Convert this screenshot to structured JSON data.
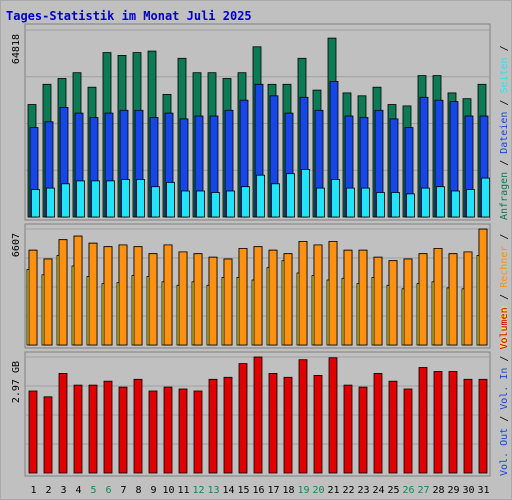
{
  "title": "Tages-Statistik im Monat Juli 2025",
  "colors": {
    "background": "#c0c0c0",
    "frame": "#a8a8a8",
    "title": "#0000cc",
    "anfragen": "#0c7a54",
    "dateien": "#1646e6",
    "seiten": "#22e4f8",
    "besuche": "#ffe820",
    "rechner": "#ff9010",
    "kbin": "#ff2020",
    "kbout": "#1646e6",
    "volumen": "#e00000",
    "weekend_label": "#0b8a5a",
    "weekday_label": "#000000"
  },
  "right_labels": {
    "top": [
      {
        "text": "Anfragen",
        "color": "#0c7a54"
      },
      {
        "text": " / ",
        "color": "#000000"
      },
      {
        "text": "Dateien",
        "color": "#1646e6"
      },
      {
        "text": " / ",
        "color": "#000000"
      },
      {
        "text": "Seiten",
        "color": "#22e4f8"
      },
      {
        "text": " / ",
        "color": "#000000"
      },
      {
        "text": "Besuche",
        "color": "#ffe820"
      },
      {
        "text": " / ",
        "color": "#000000"
      },
      {
        "text": "Rechner",
        "color": "#ff9010"
      },
      {
        "text": " / ",
        "color": "#000000"
      },
      {
        "text": "Vol. Out",
        "color": "#1646e6"
      },
      {
        "text": " / ",
        "color": "#000000"
      },
      {
        "text": "Vol. In",
        "color": "#1646e6"
      },
      {
        "text": " / ",
        "color": "#000000"
      },
      {
        "text": "Volumen",
        "color": "#e00000"
      }
    ]
  },
  "chart_data": [
    {
      "type": "bar",
      "panel": "requests",
      "ymax_label": "64818",
      "ylim": [
        0,
        64818
      ],
      "x": [
        "1",
        "2",
        "3",
        "4",
        "5",
        "6",
        "7",
        "8",
        "9",
        "10",
        "11",
        "12",
        "13",
        "14",
        "15",
        "16",
        "17",
        "18",
        "19",
        "20",
        "21",
        "22",
        "23",
        "24",
        "25",
        "26",
        "27",
        "28",
        "29",
        "30",
        "31"
      ],
      "series": [
        {
          "name": "Anfragen",
          "values": [
            39000,
            46000,
            48000,
            50000,
            45000,
            57000,
            56000,
            57000,
            57500,
            42500,
            55000,
            50000,
            50000,
            48000,
            50000,
            59000,
            46000,
            46000,
            55000,
            44000,
            62000,
            43000,
            42000,
            45000,
            39000,
            38500,
            49000,
            49000,
            43000,
            41000,
            46000
          ]
        },
        {
          "name": "Dateien",
          "values": [
            31000,
            33000,
            38000,
            36000,
            34500,
            36000,
            37000,
            37000,
            34500,
            36000,
            34000,
            35000,
            35000,
            37000,
            40500,
            46000,
            42000,
            36000,
            41500,
            37000,
            47000,
            35000,
            34500,
            37000,
            34000,
            31000,
            41500,
            40500,
            40000,
            35000,
            35000
          ]
        },
        {
          "name": "Seiten",
          "values": [
            9500,
            10000,
            11500,
            12500,
            12500,
            12500,
            13000,
            13000,
            10500,
            12000,
            9000,
            9000,
            8500,
            9000,
            10500,
            14500,
            11500,
            15000,
            16500,
            10000,
            13000,
            10000,
            10000,
            8500,
            8500,
            8000,
            10000,
            10500,
            9000,
            9500,
            13500
          ]
        }
      ]
    },
    {
      "type": "bar",
      "panel": "visits",
      "ymax_label": "6607",
      "ylim": [
        0,
        6607
      ],
      "x": [
        "1",
        "2",
        "3",
        "4",
        "5",
        "6",
        "7",
        "8",
        "9",
        "10",
        "11",
        "12",
        "13",
        "14",
        "15",
        "16",
        "17",
        "18",
        "19",
        "20",
        "21",
        "22",
        "23",
        "24",
        "25",
        "26",
        "27",
        "28",
        "29",
        "30",
        "31"
      ],
      "series": [
        {
          "name": "Besuche",
          "values": [
            4300,
            4000,
            5100,
            4500,
            3900,
            3500,
            3550,
            3950,
            3900,
            3600,
            3400,
            3600,
            3400,
            3850,
            3850,
            3700,
            4400,
            4800,
            4100,
            3950,
            3700,
            3800,
            3500,
            3850,
            3400,
            3200,
            3500,
            3600,
            3250,
            3200,
            5100
          ]
        },
        {
          "name": "Rechner",
          "values": [
            5400,
            4900,
            6000,
            6200,
            5800,
            5600,
            5700,
            5600,
            5200,
            5700,
            5300,
            5200,
            5000,
            4900,
            5500,
            5600,
            5400,
            5200,
            5900,
            5700,
            5900,
            5400,
            5400,
            5000,
            4800,
            4900,
            5200,
            5500,
            5200,
            5300,
            6600
          ]
        }
      ]
    },
    {
      "type": "bar",
      "panel": "volume",
      "ymax_label": "2.97 GB",
      "unit": "GB",
      "ylim": [
        0,
        2.97
      ],
      "x": [
        "1",
        "2",
        "3",
        "4",
        "5",
        "6",
        "7",
        "8",
        "9",
        "10",
        "11",
        "12",
        "13",
        "14",
        "15",
        "16",
        "17",
        "18",
        "19",
        "20",
        "21",
        "22",
        "23",
        "24",
        "25",
        "26",
        "27",
        "28",
        "29",
        "30",
        "31"
      ],
      "series": [
        {
          "name": "Volumen",
          "values": [
            2.1,
            1.95,
            2.55,
            2.25,
            2.25,
            2.35,
            2.2,
            2.4,
            2.1,
            2.2,
            2.15,
            2.1,
            2.4,
            2.45,
            2.8,
            2.97,
            2.55,
            2.45,
            2.9,
            2.5,
            2.95,
            2.25,
            2.2,
            2.55,
            2.35,
            2.15,
            2.7,
            2.6,
            2.6,
            2.4,
            2.4
          ]
        }
      ]
    }
  ],
  "x_axis": {
    "labels": [
      "1",
      "2",
      "3",
      "4",
      "5",
      "6",
      "7",
      "8",
      "9",
      "10",
      "11",
      "12",
      "13",
      "14",
      "15",
      "16",
      "17",
      "18",
      "19",
      "20",
      "21",
      "22",
      "23",
      "24",
      "25",
      "26",
      "27",
      "28",
      "29",
      "30",
      "31"
    ],
    "weekend_days": [
      "5",
      "6",
      "12",
      "13",
      "19",
      "20",
      "26",
      "27"
    ]
  }
}
